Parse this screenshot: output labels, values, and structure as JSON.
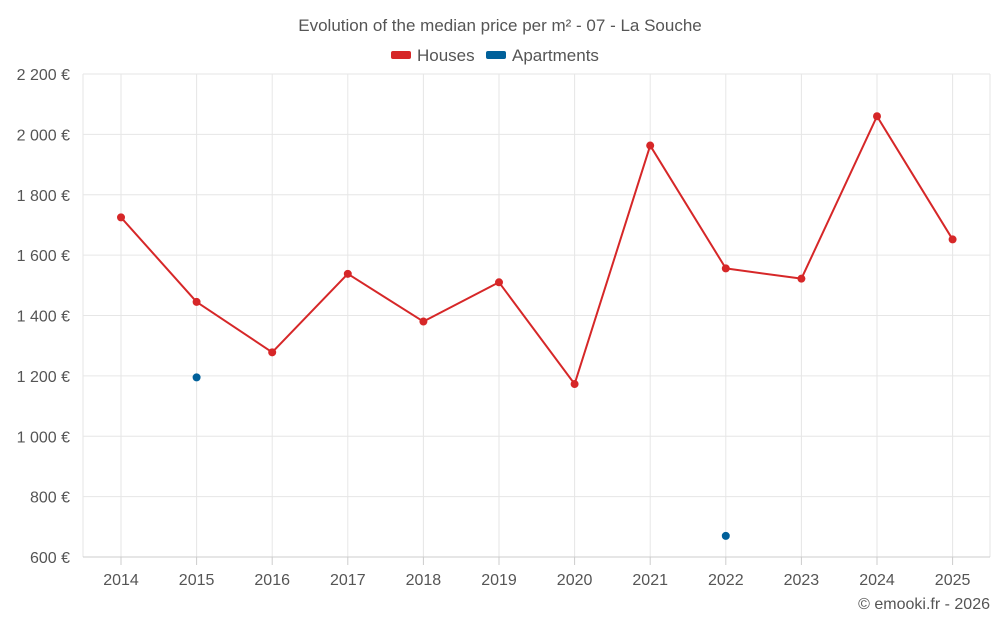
{
  "chart_data": {
    "type": "line",
    "title": "Evolution of the median price per m² - 07 - La Souche",
    "xlabel": "",
    "ylabel": "",
    "categories": [
      "2014",
      "2015",
      "2016",
      "2017",
      "2018",
      "2019",
      "2020",
      "2021",
      "2022",
      "2023",
      "2024",
      "2025"
    ],
    "ylim": [
      600,
      2200
    ],
    "yticks": [
      600,
      800,
      1000,
      1200,
      1400,
      1600,
      1800,
      2000,
      2200
    ],
    "ytick_labels": [
      "600 €",
      "800 €",
      "1 000 €",
      "1 200 €",
      "1 400 €",
      "1 600 €",
      "1 800 €",
      "2 000 €",
      "2 200 €"
    ],
    "grid": true,
    "legend_position": "top-center",
    "series": [
      {
        "name": "Houses",
        "color": "#d62728",
        "values": [
          1725,
          1445,
          1278,
          1538,
          1380,
          1510,
          1173,
          1963,
          1556,
          1522,
          2060,
          1652
        ]
      },
      {
        "name": "Apartments",
        "color": "#00609a",
        "values": [
          null,
          1195,
          null,
          null,
          null,
          null,
          null,
          null,
          670,
          null,
          null,
          null
        ]
      }
    ]
  },
  "credit": "© emooki.fr - 2026"
}
